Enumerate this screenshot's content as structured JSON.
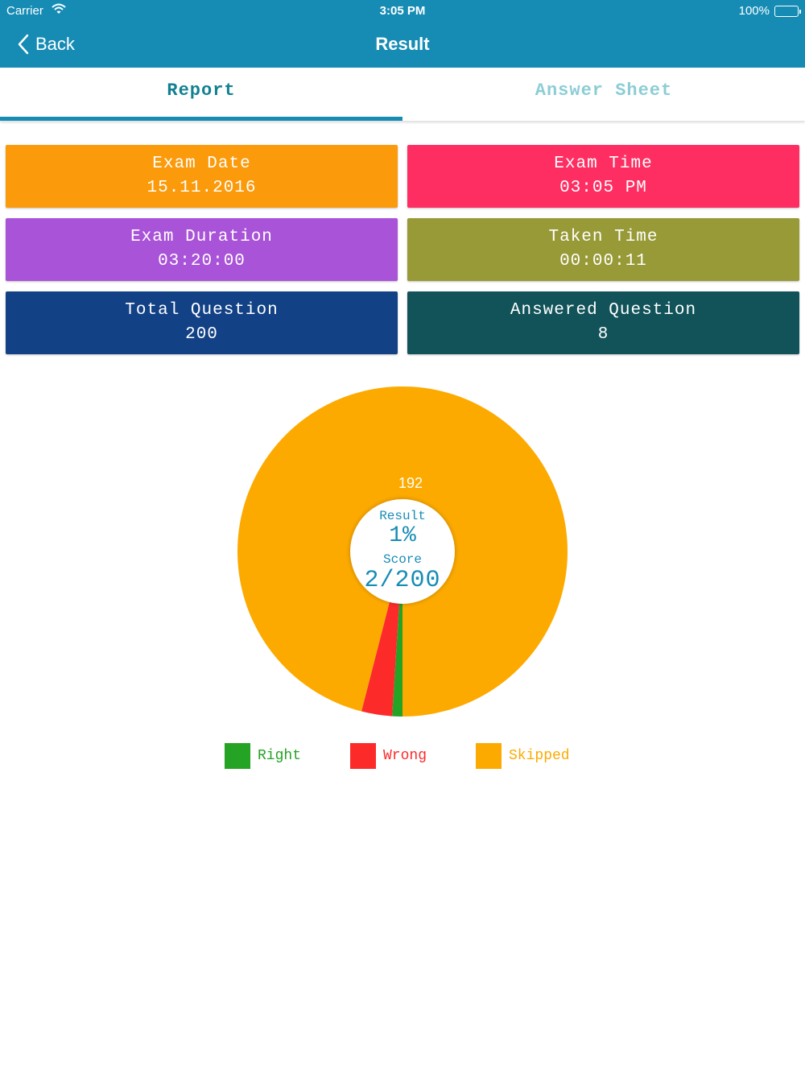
{
  "status_bar": {
    "carrier": "Carrier",
    "time": "3:05 PM",
    "battery": "100%"
  },
  "nav": {
    "back_label": "Back",
    "title": "Result"
  },
  "tabs": [
    {
      "label": "Report",
      "active": true
    },
    {
      "label": "Answer Sheet",
      "active": false
    }
  ],
  "cards": [
    {
      "label": "Exam Date",
      "value": "15.11.2016",
      "color": "#fb9a0b"
    },
    {
      "label": "Exam Time",
      "value": "03:05 PM",
      "color": "#fe2e62"
    },
    {
      "label": "Exam Duration",
      "value": "03:20:00",
      "color": "#a853d8"
    },
    {
      "label": "Taken Time",
      "value": "00:00:11",
      "color": "#979a36"
    },
    {
      "label": "Total Question",
      "value": "200",
      "color": "#124186"
    },
    {
      "label": "Answered Question",
      "value": "8",
      "color": "#115359"
    }
  ],
  "result": {
    "result_label": "Result",
    "result_value": "1%",
    "score_label": "Score",
    "score_value": "2/200"
  },
  "chart_data": {
    "type": "pie",
    "categories": [
      "Right",
      "Wrong",
      "Skipped"
    ],
    "values": [
      2,
      6,
      192
    ],
    "colors": [
      "#24a324",
      "#fd2a2a",
      "#fdaa00"
    ],
    "data_labels": [
      "",
      "",
      "192"
    ],
    "legend_position": "bottom"
  }
}
